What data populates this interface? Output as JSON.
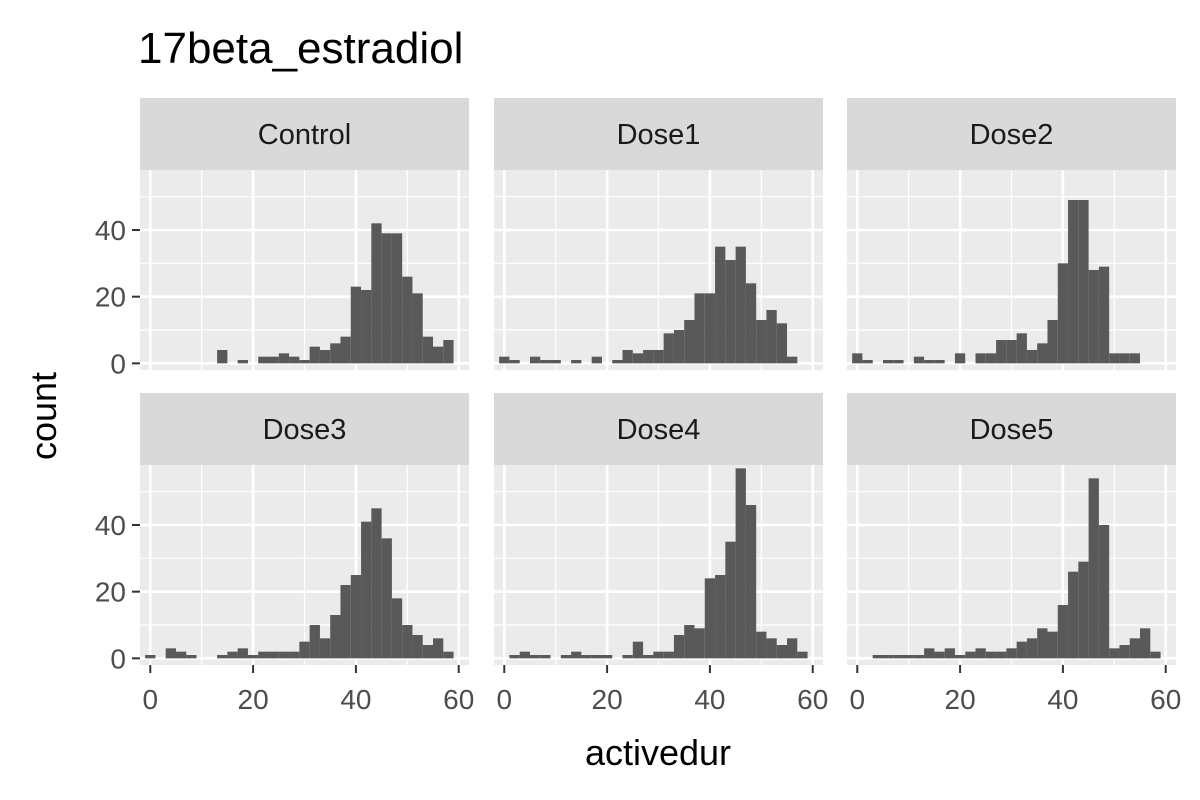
{
  "chart_data": {
    "type": "bar",
    "title": "17beta_estradiol",
    "xlabel": "activedur",
    "ylabel": "count",
    "xlim": [
      -2,
      62
    ],
    "ylim": [
      -2,
      58
    ],
    "x_ticks": [
      0,
      20,
      40,
      60
    ],
    "y_ticks": [
      0,
      20,
      40
    ],
    "bin_width": 2,
    "bin_centers": [
      0,
      2,
      4,
      6,
      8,
      10,
      12,
      14,
      16,
      18,
      20,
      22,
      24,
      26,
      28,
      30,
      32,
      34,
      36,
      38,
      40,
      42,
      44,
      46,
      48,
      50,
      52,
      54,
      56,
      58
    ],
    "panels": [
      {
        "name": "Control",
        "counts": [
          0,
          0,
          0,
          0,
          0,
          0,
          0,
          4,
          0,
          1,
          0,
          2,
          2,
          3,
          2,
          1,
          5,
          4,
          6,
          8,
          23,
          22,
          42,
          39,
          39,
          26,
          21,
          8,
          5,
          7
        ]
      },
      {
        "name": "Dose1",
        "counts": [
          2,
          1,
          0,
          2,
          1,
          1,
          0,
          1,
          0,
          2,
          0,
          1,
          4,
          3,
          4,
          4,
          9,
          10,
          13,
          21,
          21,
          35,
          31,
          35,
          24,
          13,
          16,
          12,
          2,
          0
        ]
      },
      {
        "name": "Dose2",
        "counts": [
          3,
          1,
          0,
          1,
          1,
          0,
          2,
          1,
          1,
          0,
          3,
          0,
          3,
          3,
          7,
          7,
          9,
          4,
          6,
          13,
          30,
          49,
          49,
          28,
          29,
          3,
          3,
          3,
          0,
          0
        ]
      },
      {
        "name": "Dose3",
        "counts": [
          1,
          0,
          3,
          2,
          1,
          0,
          0,
          1,
          2,
          3,
          1,
          2,
          2,
          2,
          2,
          5,
          10,
          6,
          13,
          22,
          25,
          41,
          45,
          36,
          18,
          10,
          7,
          4,
          6,
          2
        ]
      },
      {
        "name": "Dose4",
        "counts": [
          0,
          1,
          2,
          1,
          1,
          0,
          1,
          2,
          1,
          1,
          1,
          0,
          1,
          5,
          1,
          2,
          2,
          7,
          10,
          9,
          24,
          25,
          35,
          57,
          46,
          8,
          6,
          4,
          6,
          2
        ]
      },
      {
        "name": "Dose5",
        "counts": [
          0,
          0,
          1,
          1,
          1,
          1,
          1,
          3,
          2,
          3,
          1,
          2,
          3,
          2,
          2,
          3,
          5,
          6,
          9,
          8,
          16,
          26,
          29,
          54,
          40,
          3,
          4,
          6,
          9,
          2
        ]
      }
    ],
    "grid": true,
    "legend": "none",
    "bar_color": "#595959",
    "panel_background": "#ebebeb",
    "strip_background": "#d9d9d9",
    "grid_color": "#ffffff"
  }
}
